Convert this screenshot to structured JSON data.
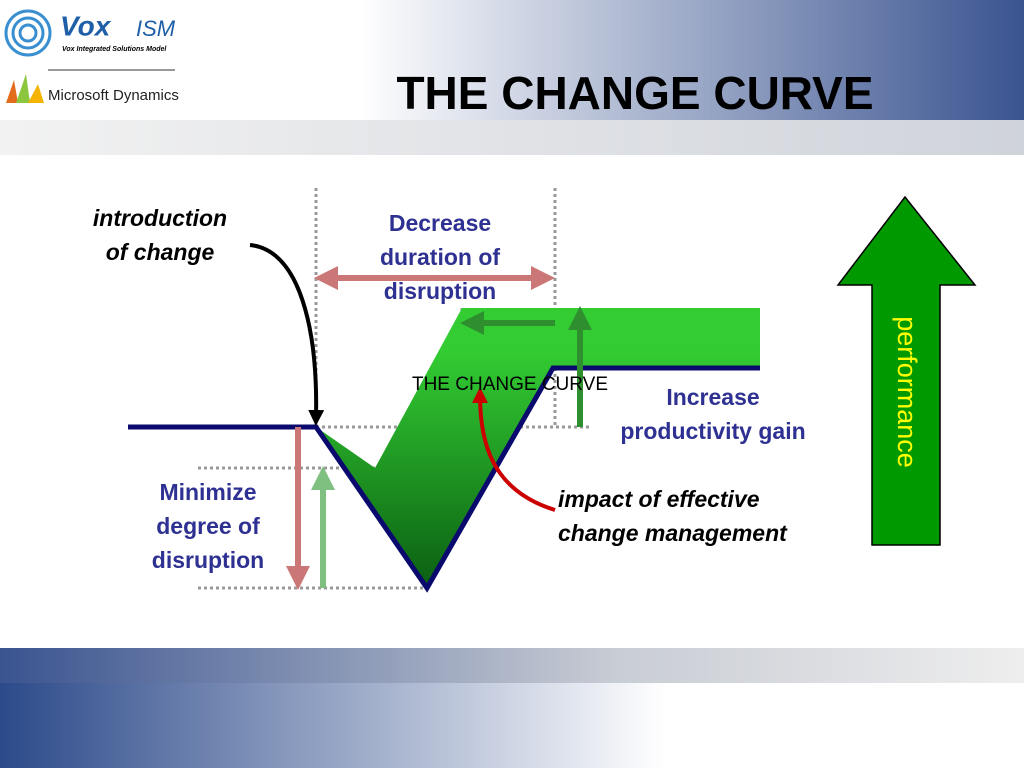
{
  "header": {
    "logo_name": "Vox",
    "logo_suffix": "ISM",
    "logo_tagline": "Vox Integrated Solutions Model",
    "partner": "Microsoft Dynamics",
    "title": "THE CHANGE CURVE"
  },
  "diagram": {
    "introduction": [
      "introduction",
      "of change"
    ],
    "decrease": [
      "Decrease",
      "duration of",
      "disruption"
    ],
    "center_label": "THE CHANGE CURVE",
    "increase": [
      "Increase",
      "productivity gain"
    ],
    "minimize": [
      "Minimize",
      "degree of",
      "disruption"
    ],
    "impact": [
      "impact of effective",
      "change management"
    ],
    "performance": "performance"
  }
}
